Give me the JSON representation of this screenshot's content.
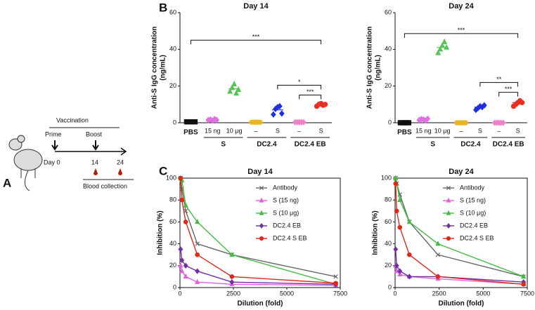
{
  "panel_a": {
    "label": "A",
    "vaccination": "Vaccination",
    "prime": "Prime",
    "boost": "Boost",
    "day0": "Day 0",
    "day14": "14",
    "day24": "24",
    "blood": "Blood collection"
  },
  "panel_b": {
    "label": "B"
  },
  "panel_c": {
    "label": "C"
  },
  "chart_data": [
    {
      "type": "dot",
      "title": "Day 14",
      "ylabel": [
        "Anti-S IgG concentration",
        "(ng/mL)"
      ],
      "categories": [
        null,
        "15 ng",
        "10 μg",
        "–",
        "S",
        "–",
        "S"
      ],
      "groups": [
        {
          "label": "PBS",
          "size": 1
        },
        {
          "label": "S",
          "size": 2
        },
        {
          "label": "DC2.4",
          "size": 2
        },
        {
          "label": "DC2.4 EB",
          "size": 2
        }
      ],
      "colors": [
        "#111111",
        "#e070e0",
        "#55c455",
        "#e8b820",
        "#2030e0",
        "#f080c8",
        "#e83020"
      ],
      "markers": [
        "square",
        "diamond",
        "triangle",
        "circle",
        "diamond",
        "diamond",
        "circle"
      ],
      "points": [
        [
          0.5,
          0.5,
          0.5,
          0.5,
          0.5
        ],
        [
          1.5,
          1.8,
          1.2,
          2.0,
          1.5
        ],
        [
          17,
          19,
          21,
          16,
          18
        ],
        [
          0.3,
          0.3,
          0.3,
          0.3,
          0.3
        ],
        [
          4.5,
          7.5,
          8.5,
          9,
          5
        ],
        [
          0.3,
          0.3,
          0.3,
          0.3,
          0.3
        ],
        [
          9,
          10,
          10.5,
          9.5,
          10
        ]
      ],
      "means": [
        0.5,
        1.6,
        18.5,
        0.3,
        7,
        0.3,
        10
      ],
      "brackets": [
        {
          "from": 0,
          "to": 6,
          "label": "***"
        },
        {
          "from": 4,
          "to": 6,
          "label": "*"
        },
        {
          "from": 5,
          "to": 6,
          "label": "***"
        }
      ],
      "ylim": [
        0,
        60
      ],
      "yticks": [
        0,
        20,
        40,
        60
      ]
    },
    {
      "type": "dot",
      "title": "Day 24",
      "ylabel": [
        "Anti-S IgG concentration",
        "(ng/mL)"
      ],
      "categories": [
        null,
        "15 ng",
        "10 μg",
        "–",
        "S",
        "–",
        "S"
      ],
      "groups": [
        {
          "label": "PBS",
          "size": 1
        },
        {
          "label": "S",
          "size": 2
        },
        {
          "label": "DC2.4",
          "size": 2
        },
        {
          "label": "DC2.4 EB",
          "size": 2
        }
      ],
      "colors": [
        "#111111",
        "#e070e0",
        "#55c455",
        "#e8b820",
        "#2030e0",
        "#f080c8",
        "#e83020"
      ],
      "markers": [
        "square",
        "diamond",
        "triangle",
        "circle",
        "diamond",
        "diamond",
        "circle"
      ],
      "points": [
        [
          0,
          0,
          0,
          0,
          0
        ],
        [
          1.5,
          2,
          1.8,
          1.2,
          2.2
        ],
        [
          38,
          40,
          42,
          44,
          41
        ],
        [
          0,
          0,
          0,
          0,
          0
        ],
        [
          7,
          8,
          9,
          8.5,
          9.5
        ],
        [
          0,
          0,
          0,
          0,
          0
        ],
        [
          9,
          10,
          11,
          12,
          11
        ]
      ],
      "means": [
        0,
        1.7,
        41,
        0,
        8.5,
        0,
        11
      ],
      "brackets": [
        {
          "from": 0,
          "to": 6,
          "label": "***"
        },
        {
          "from": 4,
          "to": 6,
          "label": "**"
        },
        {
          "from": 5,
          "to": 6,
          "label": "***"
        }
      ],
      "ylim": [
        0,
        60
      ],
      "yticks": [
        0,
        20,
        40,
        60
      ]
    },
    {
      "type": "line",
      "title": "Day 14",
      "xlabel": "Dilution (fold)",
      "ylabel": "Inhibition (%)",
      "x": [
        30,
        90,
        270,
        810,
        2430,
        7290
      ],
      "series": [
        {
          "name": "Antibody",
          "color": "#666666",
          "marker": "x",
          "values": [
            100,
            90,
            70,
            40,
            30,
            10
          ]
        },
        {
          "name": "S (15 ng)",
          "color": "#e060e0",
          "marker": "triangle",
          "values": [
            20,
            15,
            10,
            5,
            3,
            2
          ]
        },
        {
          "name": "S (10 μg)",
          "color": "#44bb44",
          "marker": "triangle",
          "values": [
            100,
            98,
            75,
            60,
            30,
            3
          ]
        },
        {
          "name": "DC2.4 EB",
          "color": "#7030a0",
          "marker": "diamond",
          "values": [
            35,
            25,
            20,
            15,
            5,
            3
          ]
        },
        {
          "name": "DC2.4 S EB",
          "color": "#e02818",
          "marker": "circle",
          "values": [
            100,
            80,
            60,
            30,
            10,
            4
          ]
        }
      ],
      "xlim": [
        0,
        7500
      ],
      "xticks": [
        0,
        2500,
        5000,
        7500
      ],
      "ylim": [
        0,
        100
      ],
      "yticks": [
        0,
        20,
        40,
        60,
        80,
        100
      ],
      "legend": "upper right"
    },
    {
      "type": "line",
      "title": "Day 24",
      "xlabel": "Dilution (fold)",
      "ylabel": "Inhibition (%)",
      "x": [
        30,
        90,
        270,
        810,
        2430,
        7290
      ],
      "series": [
        {
          "name": "Antibody",
          "color": "#666666",
          "marker": "x",
          "values": [
            100,
            95,
            85,
            60,
            30,
            10
          ]
        },
        {
          "name": "S (15 ng)",
          "color": "#e060e0",
          "marker": "triangle",
          "values": [
            20,
            15,
            12,
            10,
            8,
            3
          ]
        },
        {
          "name": "S (10 μg)",
          "color": "#44bb44",
          "marker": "triangle",
          "values": [
            100,
            95,
            80,
            60,
            40,
            10
          ]
        },
        {
          "name": "DC2.4 EB",
          "color": "#7030a0",
          "marker": "diamond",
          "values": [
            35,
            20,
            15,
            10,
            10,
            5
          ]
        },
        {
          "name": "DC2.4 S EB",
          "color": "#e02818",
          "marker": "circle",
          "values": [
            95,
            70,
            55,
            30,
            10,
            3
          ]
        }
      ],
      "xlim": [
        0,
        7500
      ],
      "xticks": [
        0,
        2500,
        5000,
        7500
      ],
      "ylim": [
        0,
        100
      ],
      "yticks": [
        0,
        20,
        40,
        60,
        80,
        100
      ],
      "legend": "upper right"
    }
  ]
}
